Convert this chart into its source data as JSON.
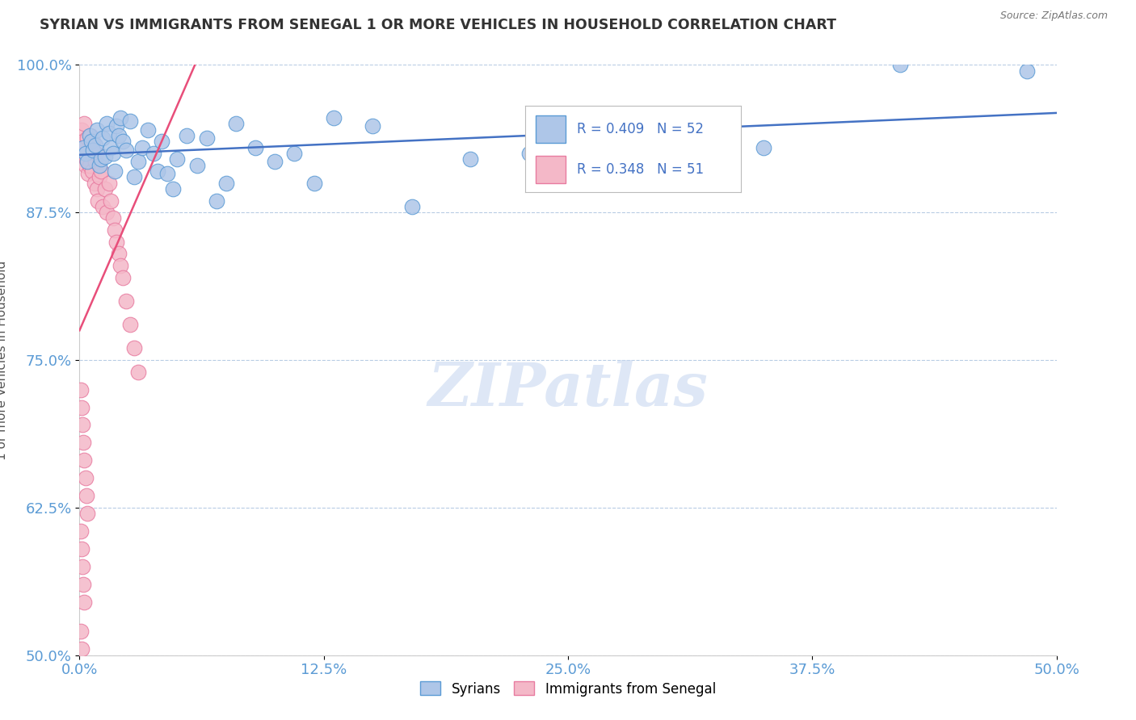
{
  "title": "SYRIAN VS IMMIGRANTS FROM SENEGAL 1 OR MORE VEHICLES IN HOUSEHOLD CORRELATION CHART",
  "source": "Source: ZipAtlas.com",
  "xlabel": "",
  "ylabel": "1 or more Vehicles in Household",
  "xlim": [
    0.0,
    50.0
  ],
  "ylim": [
    50.0,
    100.0
  ],
  "xticks": [
    0.0,
    12.5,
    25.0,
    37.5,
    50.0
  ],
  "yticks": [
    50.0,
    62.5,
    75.0,
    87.5,
    100.0
  ],
  "xticklabels": [
    "0.0%",
    "12.5%",
    "25.0%",
    "37.5%",
    "50.0%"
  ],
  "yticklabels": [
    "50.0%",
    "62.5%",
    "75.0%",
    "87.5%",
    "100.0%"
  ],
  "syrians_color": "#aec6e8",
  "senegal_color": "#f4b8c8",
  "syrians_edge": "#5b9bd5",
  "senegal_edge": "#e87ba0",
  "trendline_syrians_color": "#4472c4",
  "trendline_senegal_color": "#e84e7a",
  "R_syrians": 0.409,
  "N_syrians": 52,
  "R_senegal": 0.348,
  "N_senegal": 51,
  "legend_label_syrians": "Syrians",
  "legend_label_senegal": "Immigrants from Senegal",
  "watermark": "ZIPatlas",
  "watermark_color": "#c8d8f0",
  "syrians_x": [
    0.2,
    0.3,
    0.4,
    0.5,
    0.6,
    0.7,
    0.8,
    0.9,
    1.0,
    1.1,
    1.2,
    1.3,
    1.4,
    1.5,
    1.6,
    1.7,
    1.8,
    1.9,
    2.0,
    2.1,
    2.2,
    2.4,
    2.6,
    2.8,
    3.0,
    3.2,
    3.5,
    3.8,
    4.0,
    4.2,
    4.5,
    4.8,
    5.0,
    5.5,
    6.0,
    6.5,
    7.0,
    7.5,
    8.0,
    9.0,
    10.0,
    11.0,
    12.0,
    13.0,
    15.0,
    17.0,
    20.0,
    23.0,
    27.0,
    35.0,
    42.0,
    48.5
  ],
  "syrians_y": [
    93.0,
    92.5,
    91.8,
    94.0,
    93.5,
    92.8,
    93.2,
    94.5,
    91.5,
    92.0,
    93.8,
    92.2,
    95.0,
    94.2,
    93.0,
    92.5,
    91.0,
    94.8,
    94.0,
    95.5,
    93.5,
    92.8,
    95.2,
    90.5,
    91.8,
    93.0,
    94.5,
    92.5,
    91.0,
    93.5,
    90.8,
    89.5,
    92.0,
    94.0,
    91.5,
    93.8,
    88.5,
    90.0,
    95.0,
    93.0,
    91.8,
    92.5,
    90.0,
    95.5,
    94.8,
    88.0,
    92.0,
    92.5,
    90.5,
    93.0,
    100.0,
    99.5
  ],
  "senegal_x": [
    0.05,
    0.1,
    0.15,
    0.2,
    0.25,
    0.3,
    0.35,
    0.4,
    0.45,
    0.5,
    0.55,
    0.6,
    0.65,
    0.7,
    0.75,
    0.8,
    0.85,
    0.9,
    0.95,
    1.0,
    1.1,
    1.2,
    1.3,
    1.4,
    1.5,
    1.6,
    1.7,
    1.8,
    1.9,
    2.0,
    2.1,
    2.2,
    2.4,
    2.6,
    2.8,
    3.0,
    0.05,
    0.1,
    0.15,
    0.2,
    0.25,
    0.3,
    0.35,
    0.4,
    0.05,
    0.1,
    0.15,
    0.2,
    0.25,
    0.05,
    0.1
  ],
  "senegal_y": [
    93.0,
    94.5,
    92.8,
    93.5,
    95.0,
    91.5,
    92.0,
    93.8,
    90.8,
    91.5,
    94.0,
    92.5,
    91.0,
    93.5,
    90.0,
    91.8,
    92.5,
    89.5,
    88.5,
    90.5,
    91.0,
    88.0,
    89.5,
    87.5,
    90.0,
    88.5,
    87.0,
    86.0,
    85.0,
    84.0,
    83.0,
    82.0,
    80.0,
    78.0,
    76.0,
    74.0,
    72.5,
    71.0,
    69.5,
    68.0,
    66.5,
    65.0,
    63.5,
    62.0,
    60.5,
    59.0,
    57.5,
    56.0,
    54.5,
    52.0,
    50.5
  ]
}
